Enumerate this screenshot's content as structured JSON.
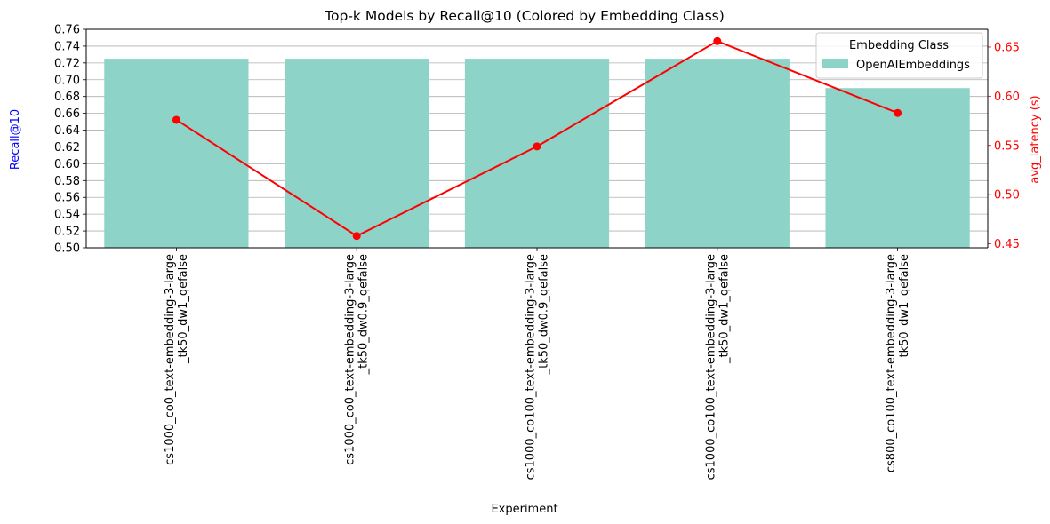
{
  "chart_data": {
    "type": "bar",
    "title": "Top-k Models by Recall@10 (Colored by Embedding Class)",
    "xlabel": "Experiment",
    "ylabel": "Recall@10",
    "y2label": "avg_latency (s)",
    "ylim": [
      0.5,
      0.76
    ],
    "y2lim": [
      0.446,
      0.668
    ],
    "yticks": [
      "0.50",
      "0.52",
      "0.54",
      "0.56",
      "0.58",
      "0.60",
      "0.62",
      "0.64",
      "0.66",
      "0.68",
      "0.70",
      "0.72",
      "0.74",
      "0.76"
    ],
    "y2ticks": [
      "0.45",
      "0.50",
      "0.55",
      "0.60",
      "0.65"
    ],
    "grid": true,
    "categories": [
      [
        "cs1000_co0_text-embedding-3-large",
        "_tk50_dw1_qefalse"
      ],
      [
        "cs1000_co0_text-embedding-3-large",
        "_tk50_dw0.9_qefalse"
      ],
      [
        "cs1000_co100_text-embedding-3-large",
        "_tk50_dw0.9_qefalse"
      ],
      [
        "cs1000_co100_text-embedding-3-large",
        "_tk50_dw1_qefalse"
      ],
      [
        "cs800_co100_text-embedding-3-large",
        "_tk50_dw1_qefalse"
      ]
    ],
    "series": [
      {
        "name": "OpenAIEmbeddings",
        "axis": "left",
        "kind": "bar",
        "color": "#8dd3c7",
        "values": [
          0.725,
          0.725,
          0.725,
          0.725,
          0.69
        ]
      },
      {
        "axis": "right",
        "kind": "line",
        "color": "#ff0000",
        "values": [
          0.576,
          0.458,
          0.549,
          0.656,
          0.583
        ]
      }
    ],
    "legend": {
      "title": "Embedding Class",
      "position": "top-right",
      "entries": [
        "OpenAIEmbeddings"
      ]
    },
    "colors": {
      "ylabel": "#0000ff",
      "y2label": "#ff0000",
      "grid": "#b0b0b0"
    }
  }
}
